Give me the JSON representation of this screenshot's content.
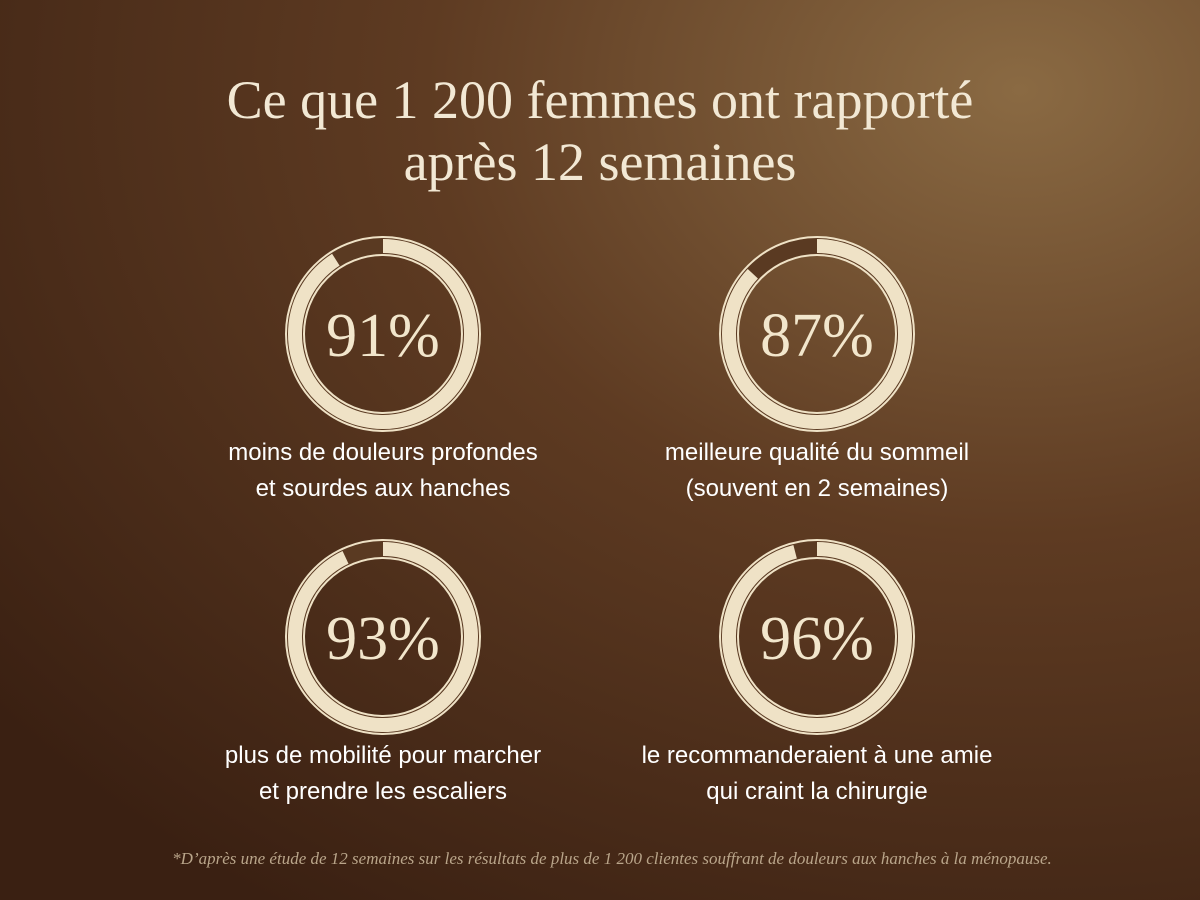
{
  "title_lines": [
    "Ce que 1 200 femmes ont rapporté",
    "après 12 semaines"
  ],
  "stats": [
    {
      "value": 91,
      "value_label": "91%",
      "label_lines": [
        "moins de douleurs profondes",
        "et sourdes aux hanches"
      ]
    },
    {
      "value": 87,
      "value_label": "87%",
      "label_lines": [
        "meilleure qualité du sommeil",
        "(souvent en 2 semaines)"
      ]
    },
    {
      "value": 93,
      "value_label": "93%",
      "label_lines": [
        "plus de mobilité pour marcher",
        "et prendre les escaliers"
      ]
    },
    {
      "value": 96,
      "value_label": "96%",
      "label_lines": [
        "le recommanderaient à une amie",
        "qui craint la chirurgie"
      ]
    }
  ],
  "footnote": "*D’après une étude de 12 semaines sur les résultats de plus de 1 200 clientes souffrant de douleurs aux hanches à la ménopause."
}
